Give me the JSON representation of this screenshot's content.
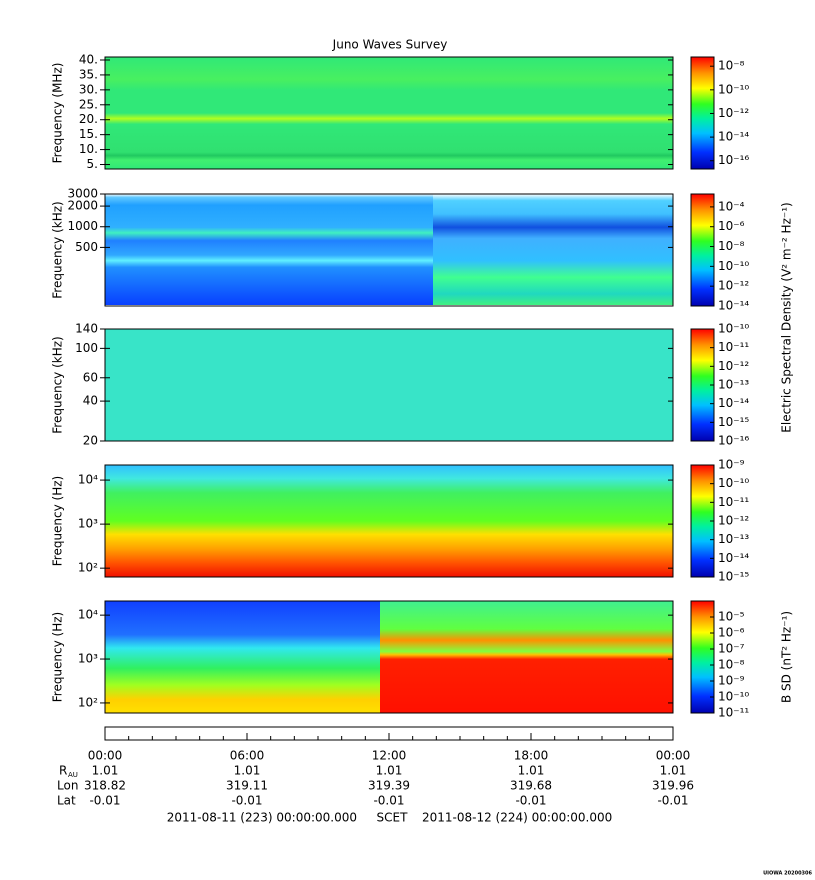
{
  "title": "Juno Waves Survey",
  "chart_data": [
    {
      "type": "heatmap",
      "ylabel": "Frequency (MHz)",
      "log": false,
      "ylim": [
        3.5,
        41
      ],
      "yticks": [
        {
          "value": 5,
          "label": "5."
        },
        {
          "value": 10,
          "label": "10."
        },
        {
          "value": 15,
          "label": "15."
        },
        {
          "value": 20,
          "label": "20."
        },
        {
          "value": 25,
          "label": "25."
        },
        {
          "value": 30,
          "label": "30."
        },
        {
          "value": 35,
          "label": "35."
        },
        {
          "value": 40,
          "label": "40."
        }
      ],
      "clim": [
        2e-17,
        6e-08
      ],
      "cticks": [
        {
          "value": 1e-08,
          "label": "10⁻⁸"
        },
        {
          "value": 1e-10,
          "label": "10⁻¹⁰"
        },
        {
          "value": 1e-12,
          "label": "10⁻¹²"
        },
        {
          "value": 1e-14,
          "label": "10⁻¹⁴"
        },
        {
          "value": 1e-16,
          "label": "10⁻¹⁶"
        }
      ]
    },
    {
      "type": "heatmap",
      "ylabel": "Frequency (kHz)",
      "log": true,
      "ylim": [
        70,
        3000
      ],
      "yticks": [
        500,
        1000,
        2000,
        3000
      ],
      "clim": [
        1e-14,
        0.002
      ],
      "cticks": [
        {
          "value": 0.0001,
          "label": "10⁻⁴"
        },
        {
          "value": 1e-06,
          "label": "10⁻⁶"
        },
        {
          "value": 1e-08,
          "label": "10⁻⁸"
        },
        {
          "value": 1e-10,
          "label": "10⁻¹⁰"
        },
        {
          "value": 1e-12,
          "label": "10⁻¹²"
        },
        {
          "value": 1e-14,
          "label": "10⁻¹⁴"
        }
      ],
      "colorbar_label": "Electric Spectral Density (V² m⁻² Hz⁻¹)"
    },
    {
      "type": "heatmap",
      "ylabel": "Frequency (kHz)",
      "log": true,
      "ylim": [
        20,
        140
      ],
      "yticks": [
        20,
        40,
        60,
        100,
        140
      ],
      "clim": [
        1e-16,
        1e-10
      ],
      "cticks": [
        {
          "value": 1e-10,
          "label": "10⁻¹⁰"
        },
        {
          "value": 1e-11,
          "label": "10⁻¹¹"
        },
        {
          "value": 1e-12,
          "label": "10⁻¹²"
        },
        {
          "value": 1e-13,
          "label": "10⁻¹³"
        },
        {
          "value": 1e-14,
          "label": "10⁻¹⁴"
        },
        {
          "value": 1e-15,
          "label": "10⁻¹⁵"
        },
        {
          "value": 1e-16,
          "label": "10⁻¹⁶"
        }
      ]
    },
    {
      "type": "heatmap",
      "ylabel": "Frequency (Hz)",
      "log": true,
      "ylim": [
        63,
        22000
      ],
      "yticks": [
        {
          "value": 100,
          "label": "10²"
        },
        {
          "value": 1000,
          "label": "10³"
        },
        {
          "value": 10000,
          "label": "10⁴"
        }
      ],
      "clim": [
        1e-15,
        1e-09
      ],
      "cticks": [
        {
          "value": 1e-09,
          "label": "10⁻⁹"
        },
        {
          "value": 1e-10,
          "label": "10⁻¹⁰"
        },
        {
          "value": 1e-11,
          "label": "10⁻¹¹"
        },
        {
          "value": 1e-12,
          "label": "10⁻¹²"
        },
        {
          "value": 1e-13,
          "label": "10⁻¹³"
        },
        {
          "value": 1e-14,
          "label": "10⁻¹⁴"
        },
        {
          "value": 1e-15,
          "label": "10⁻¹⁵"
        }
      ]
    },
    {
      "type": "heatmap",
      "ylabel": "Frequency (Hz)",
      "log": true,
      "ylim": [
        59,
        21000
      ],
      "yticks": [
        {
          "value": 100,
          "label": "10²"
        },
        {
          "value": 1000,
          "label": "10³"
        },
        {
          "value": 10000,
          "label": "10⁴"
        }
      ],
      "clim": [
        1e-11,
        0.0001
      ],
      "cticks": [
        {
          "value": 1e-05,
          "label": "10⁻⁵"
        },
        {
          "value": 1e-06,
          "label": "10⁻⁶"
        },
        {
          "value": 1e-07,
          "label": "10⁻⁷"
        },
        {
          "value": 1e-08,
          "label": "10⁻⁸"
        },
        {
          "value": 1e-09,
          "label": "10⁻⁹"
        },
        {
          "value": 1e-10,
          "label": "10⁻¹⁰"
        },
        {
          "value": 1e-11,
          "label": "10⁻¹¹"
        }
      ],
      "colorbar_label": "B SD (nT² Hz⁻¹)"
    }
  ],
  "time_axis": {
    "ticks": [
      "00:00",
      "06:00",
      "12:00",
      "18:00",
      "00:00"
    ],
    "rows": [
      {
        "name": "R",
        "sub": "AU",
        "values": [
          "1.01",
          "1.01",
          "1.01",
          "1.01",
          "1.01"
        ]
      },
      {
        "name": "Lon",
        "values": [
          "318.82",
          "319.11",
          "319.39",
          "319.68",
          "319.96"
        ]
      },
      {
        "name": "Lat",
        "values": [
          "-0.01",
          "-0.01",
          "-0.01",
          "-0.01",
          "-0.01"
        ]
      }
    ],
    "start": "2011-08-11 (223) 00:00:00.000",
    "frame": "SCET",
    "end": "2011-08-12 (224) 00:00:00.000"
  },
  "credit": "UIOWA 20200306"
}
